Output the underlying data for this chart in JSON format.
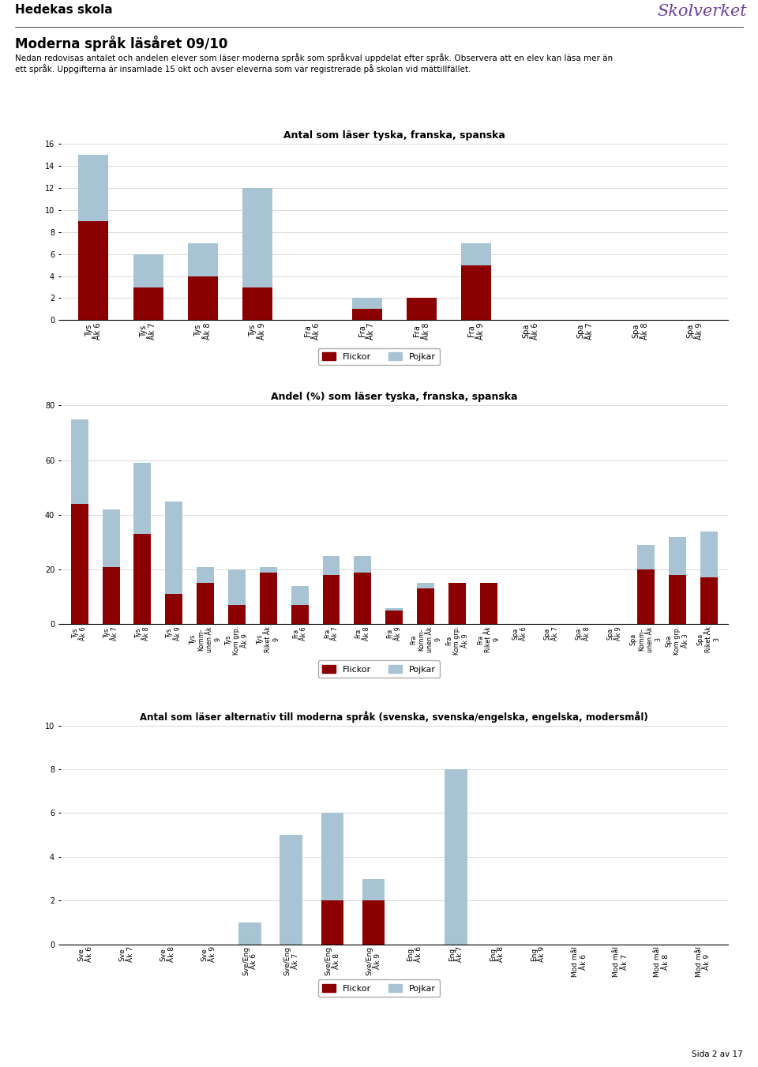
{
  "page_title": "Hedekas skola",
  "subtitle": "Moderna språk läsåret 09/10",
  "description_line1": "Nedan redovisas antalet och andelen elever som läser moderna språk som språkval uppdelat efter språk. Observera att en elev kan läsa mer än",
  "description_line2": "ett språk. Uppgifterna är insamlade 15 okt och avser eleverna som var registrerade på skolan vid mättillfället.",
  "color_flickor": "#8B0000",
  "color_pojkar": "#A8C4D4",
  "footer": "Sida 2 av 17",
  "chart1": {
    "title": "Antal som läser tyska, franska, spanska",
    "ylim": [
      0,
      16
    ],
    "yticks": [
      0,
      2,
      4,
      6,
      8,
      10,
      12,
      14,
      16
    ],
    "categories": [
      "Tys\nÅk 6",
      "Tys\nÅk 7",
      "Tys\nÅk 8",
      "Tys\nÅk 9",
      "Fra\nÅk 6",
      "Fra\nÅk 7",
      "Fra\nÅk 8",
      "Fra\nÅk 9",
      "Spa\nÅk 6",
      "Spa\nÅk 7",
      "Spa\nÅk 8",
      "Spa\nÅk 9"
    ],
    "flickor": [
      9,
      3,
      4,
      3,
      0,
      1,
      2,
      5,
      0,
      0,
      0,
      0
    ],
    "pojkar": [
      6,
      3,
      3,
      9,
      0,
      1,
      0,
      2,
      0,
      0,
      0,
      0
    ]
  },
  "chart2": {
    "title": "Andel (%) som läser tyska, franska, spanska",
    "ylim": [
      0,
      80
    ],
    "yticks": [
      0,
      20,
      40,
      60,
      80
    ],
    "categories": [
      "Tys\nÅk 6",
      "Tys\nÅk 7",
      "Tys\nÅk 8",
      "Tys\nÅk 9",
      "Tys\nKomm-\nunen Åk\n9",
      "Tys\nKom grp.\nÅk 9",
      "Tys\nRiket Åk\n9",
      "Fra\nÅk 6",
      "Fra\nÅk 7",
      "Fra\nÅk 8",
      "Fra\nÅk 9",
      "Fra\nKomm-\nunen Åk\n9",
      "Fra\nKom grp.\nÅk 9",
      "Fra\nRiket Åk\n9",
      "Spa\nÅk 6",
      "Spa\nÅk 7",
      "Spa\nÅk 8",
      "Spa\nÅk 9",
      "Spa\nKomm-\nunen Åk\n3",
      "Spa\nKom grp.\nÅk 3",
      "Spa\nRiket Åk\n3"
    ],
    "flickor": [
      44,
      21,
      33,
      11,
      15,
      7,
      19,
      7,
      18,
      19,
      5,
      13,
      15,
      15,
      0,
      0,
      0,
      0,
      20,
      18,
      17
    ],
    "pojkar": [
      31,
      21,
      26,
      34,
      6,
      13,
      2,
      7,
      7,
      6,
      1,
      2,
      0,
      0,
      0,
      0,
      0,
      0,
      9,
      14,
      17
    ]
  },
  "chart3": {
    "title": "Antal som läser alternativ till moderna språk (svenska, svenska/engelska, engelska, modersmål)",
    "ylim": [
      0,
      10
    ],
    "yticks": [
      0,
      2,
      4,
      6,
      8,
      10
    ],
    "categories": [
      "Sve\nÅk 6",
      "Sve\nÅk 7",
      "Sve\nÅk 8",
      "Sve\nÅk 9",
      "Sve/Eng\nÅk 6",
      "Sve/Eng\nÅk 7",
      "Sve/Eng\nÅk 8",
      "Sve/Eng\nÅk 9",
      "Eng\nÅk 6",
      "Eng\nÅk 7",
      "Eng\nÅk 8",
      "Eng\nÅk 9",
      "Mod mål\nÅk 6",
      "Mod mål\nÅk 7",
      "Mod mål\nÅk 8",
      "Mod mål\nÅk 9"
    ],
    "flickor": [
      0,
      0,
      0,
      0,
      0,
      0,
      2,
      2,
      0,
      0,
      0,
      0,
      0,
      0,
      0,
      0
    ],
    "pojkar": [
      0,
      0,
      0,
      0,
      1,
      5,
      4,
      1,
      0,
      8,
      0,
      0,
      0,
      0,
      0,
      0
    ]
  }
}
